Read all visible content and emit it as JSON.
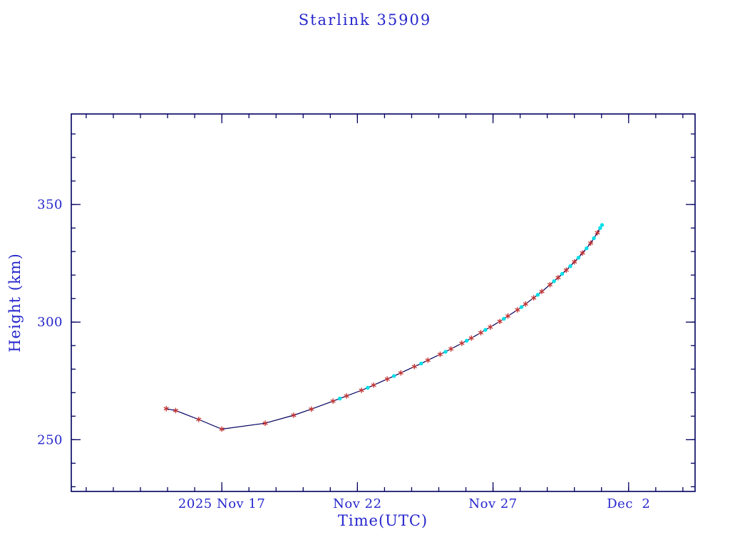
{
  "chart_data": {
    "type": "line",
    "title": "Starlink 35909",
    "xlabel": "Time(UTC)",
    "ylabel": "Height (km)",
    "x_unit": "days relative to 2025 Nov 17 (x tick labels as shown on axis)",
    "xlim": [
      -5.55,
      17.45
    ],
    "ylim": [
      228,
      388.5
    ],
    "x_ticks": [
      {
        "d": 0,
        "label": "2025 Nov 17"
      },
      {
        "d": 5,
        "label": "Nov 22"
      },
      {
        "d": 10,
        "label": "Nov 27"
      },
      {
        "d": 15,
        "label": "Dec  2"
      }
    ],
    "y_ticks": [
      {
        "v": 250,
        "label": "250"
      },
      {
        "v": 300,
        "label": "300"
      },
      {
        "v": 350,
        "label": "350"
      }
    ],
    "x_minor_step": 1,
    "y_minor_step": 10,
    "grid": false,
    "legend": "none",
    "colors": {
      "text": "#2626cd",
      "frame": "#00005f",
      "line": "#00005f",
      "cyan_dots": "#00dfe8",
      "red_asterisks": "#c03030"
    },
    "series": [
      {
        "name": "cyan dots",
        "marker": "dot",
        "color_key": "cyan_dots",
        "points": [
          [
            4.35,
            267.5
          ],
          [
            5.38,
            272.1
          ],
          [
            6.35,
            277.1
          ],
          [
            7.35,
            282.4
          ],
          [
            8.25,
            287.4
          ],
          [
            9.03,
            292.1
          ],
          [
            9.72,
            296.7
          ],
          [
            10.4,
            301.4
          ],
          [
            11.05,
            306.4
          ],
          [
            11.65,
            311.6
          ],
          [
            12.25,
            317.4
          ],
          [
            12.55,
            320.5
          ],
          [
            12.85,
            323.8
          ],
          [
            13.15,
            327.4
          ],
          [
            13.45,
            331.4
          ],
          [
            13.72,
            335.7
          ],
          [
            13.95,
            340.0
          ],
          [
            14.02,
            341.3
          ]
        ]
      },
      {
        "name": "red asterisks",
        "marker": "asterisk",
        "color_key": "red_asterisks",
        "points": [
          [
            -2.05,
            263.2
          ],
          [
            -1.7,
            262.4
          ],
          [
            -0.85,
            258.6
          ],
          [
            0.0,
            254.5
          ],
          [
            1.6,
            257.0
          ],
          [
            2.65,
            260.4
          ],
          [
            3.3,
            263.0
          ],
          [
            4.1,
            266.4
          ],
          [
            4.6,
            268.6
          ],
          [
            5.15,
            271.0
          ],
          [
            5.6,
            273.2
          ],
          [
            6.1,
            275.8
          ],
          [
            6.6,
            278.4
          ],
          [
            7.1,
            281.1
          ],
          [
            7.6,
            283.8
          ],
          [
            8.05,
            286.3
          ],
          [
            8.45,
            288.6
          ],
          [
            8.85,
            291.0
          ],
          [
            9.2,
            293.2
          ],
          [
            9.55,
            295.5
          ],
          [
            9.9,
            297.9
          ],
          [
            10.25,
            300.3
          ],
          [
            10.55,
            302.6
          ],
          [
            10.9,
            305.2
          ],
          [
            11.2,
            307.7
          ],
          [
            11.5,
            310.3
          ],
          [
            11.8,
            313.0
          ],
          [
            12.1,
            315.9
          ],
          [
            12.4,
            318.9
          ],
          [
            12.7,
            322.1
          ],
          [
            13.0,
            325.6
          ],
          [
            13.3,
            329.4
          ],
          [
            13.6,
            333.6
          ],
          [
            13.85,
            338.0
          ]
        ]
      }
    ]
  }
}
